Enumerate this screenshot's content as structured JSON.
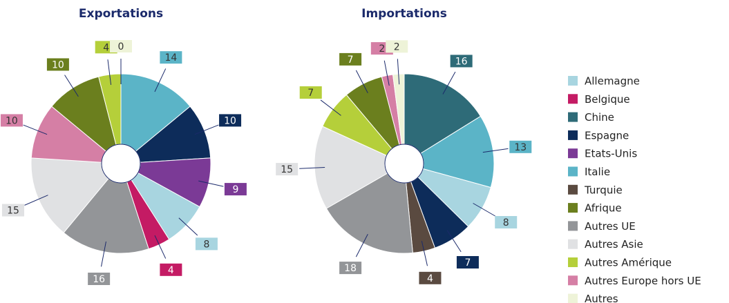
{
  "chart_data": [
    {
      "type": "pie",
      "title": "Exportations",
      "categories": [
        "Italie",
        "Espagne",
        "Etats-Unis",
        "Allemagne",
        "Belgique",
        "Autres UE",
        "Autres Asie",
        "Autres Europe hors UE",
        "Afrique",
        "Autres Amérique",
        "Autres"
      ],
      "values": [
        14,
        10,
        9,
        8,
        4,
        16,
        15,
        10,
        10,
        4,
        0
      ]
    },
    {
      "type": "pie",
      "title": "Importations",
      "categories": [
        "Chine",
        "Italie",
        "Allemagne",
        "Espagne",
        "Turquie",
        "Autres UE",
        "Autres Asie",
        "Autres Amérique",
        "Afrique",
        "Autres Europe hors UE",
        "Autres"
      ],
      "values": [
        16,
        13,
        8,
        7,
        4,
        18,
        15,
        7,
        7,
        2,
        2
      ]
    }
  ],
  "legend": {
    "items": [
      {
        "name": "Allemagne",
        "color": "#a8d5e0"
      },
      {
        "name": "Belgique",
        "color": "#c41b64"
      },
      {
        "name": "Chine",
        "color": "#2e6b78"
      },
      {
        "name": "Espagne",
        "color": "#0d2c5a"
      },
      {
        "name": "Etats-Unis",
        "color": "#7b3a96"
      },
      {
        "name": "Italie",
        "color": "#5bb4c7"
      },
      {
        "name": "Turquie",
        "color": "#5a4a40"
      },
      {
        "name": "Afrique",
        "color": "#6b7f1e"
      },
      {
        "name": "Autres UE",
        "color": "#939598"
      },
      {
        "name": "Autres Asie",
        "color": "#e0e1e3"
      },
      {
        "name": "Autres Amérique",
        "color": "#b5cf3a"
      },
      {
        "name": "Autres Europe hors UE",
        "color": "#d57fa5"
      },
      {
        "name": "Autres",
        "color": "#eef3d8"
      }
    ]
  }
}
